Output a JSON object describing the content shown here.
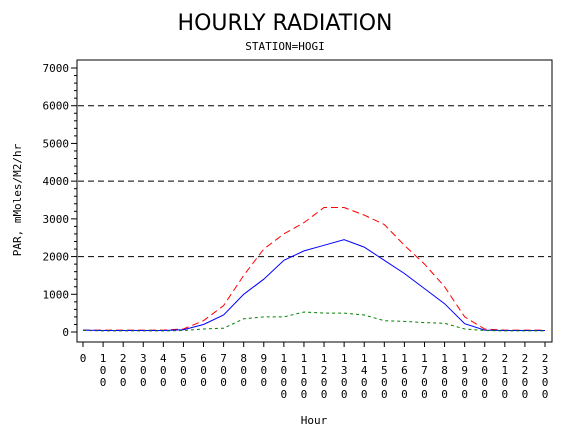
{
  "chart_data": {
    "type": "line",
    "title": "HOURLY RADIATION",
    "subtitle": "STATION=HOGI",
    "xlabel": "Hour",
    "ylabel": "PAR, mMoles/M2/hr",
    "ylim": [
      0,
      7000
    ],
    "yticks": [
      "0",
      "1000",
      "2000",
      "3000",
      "4000",
      "5000",
      "6000",
      "7000"
    ],
    "reference_lines": [
      2000,
      4000,
      6000
    ],
    "categories": [
      "0",
      "100",
      "200",
      "300",
      "400",
      "500",
      "600",
      "700",
      "800",
      "900",
      "1000",
      "1100",
      "1200",
      "1300",
      "1400",
      "1500",
      "1600",
      "1700",
      "1800",
      "1900",
      "2000",
      "2100",
      "2200",
      "2300"
    ],
    "series": [
      {
        "color": "#ff0000",
        "dash": "long",
        "values": [
          50,
          50,
          50,
          50,
          50,
          80,
          300,
          700,
          1500,
          2200,
          2600,
          2900,
          3300,
          3300,
          3100,
          2850,
          2300,
          1800,
          1200,
          400,
          80,
          50,
          50,
          50
        ]
      },
      {
        "color": "#0000ff",
        "dash": "solid",
        "values": [
          50,
          40,
          40,
          40,
          40,
          60,
          200,
          450,
          1000,
          1400,
          1900,
          2150,
          2300,
          2450,
          2250,
          1900,
          1550,
          1150,
          750,
          220,
          50,
          40,
          40,
          40
        ]
      },
      {
        "color": "#008000",
        "dash": "short",
        "values": [
          40,
          30,
          30,
          30,
          30,
          40,
          80,
          100,
          350,
          400,
          400,
          530,
          500,
          500,
          450,
          300,
          280,
          250,
          230,
          80,
          40,
          30,
          30,
          30
        ]
      }
    ]
  }
}
